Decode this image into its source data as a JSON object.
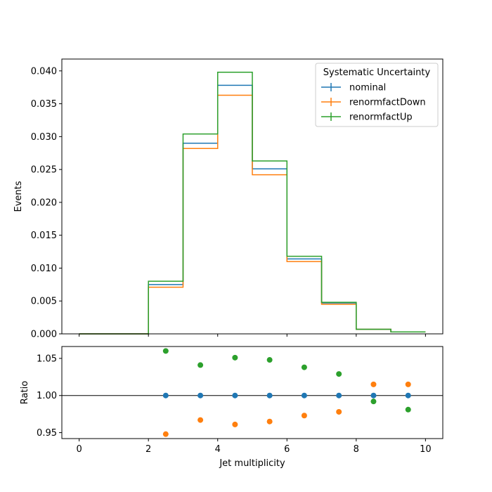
{
  "chart_data": [
    {
      "type": "line",
      "subtype": "step-histogram",
      "title": "",
      "xlabel": "",
      "ylabel": "Events",
      "xlim": [
        -0.5,
        10.5
      ],
      "ylim": [
        0.0,
        0.0418
      ],
      "xticks": [
        0,
        2,
        4,
        6,
        8,
        10
      ],
      "yticks": [
        "0.000",
        "0.005",
        "0.010",
        "0.015",
        "0.020",
        "0.025",
        "0.030",
        "0.035",
        "0.040"
      ],
      "bin_edges": [
        0,
        1,
        2,
        3,
        4,
        5,
        6,
        7,
        8,
        9,
        10
      ],
      "grid": false,
      "legend": {
        "title": "Systematic Uncertainty",
        "position": "top-right"
      },
      "series": [
        {
          "name": "nominal",
          "color": "#1f77b4",
          "values": [
            0.0,
            0.0,
            0.0075,
            0.029,
            0.0378,
            0.0251,
            0.0114,
            0.0047,
            0.0007,
            0.0003
          ]
        },
        {
          "name": "renormfactDown",
          "color": "#ff7f0e",
          "values": [
            0.0,
            0.0,
            0.0071,
            0.0282,
            0.0363,
            0.0242,
            0.011,
            0.0045,
            0.0007,
            0.0003
          ]
        },
        {
          "name": "renormfactUp",
          "color": "#2ca02c",
          "values": [
            0.0,
            0.0,
            0.008,
            0.0304,
            0.0398,
            0.0263,
            0.0118,
            0.0048,
            0.0007,
            0.0003
          ]
        }
      ]
    },
    {
      "type": "scatter",
      "title": "",
      "xlabel": "Jet multiplicity",
      "ylabel": "Ratio",
      "xlim": [
        -0.5,
        10.5
      ],
      "ylim": [
        0.942,
        1.066
      ],
      "xticks": [
        0,
        2,
        4,
        6,
        8,
        10
      ],
      "yticks": [
        "0.95",
        "1.00",
        "1.05"
      ],
      "reference_line": 1.0,
      "grid": false,
      "x": [
        2.5,
        3.5,
        4.5,
        5.5,
        6.5,
        7.5,
        8.5,
        9.5
      ],
      "series": [
        {
          "name": "nominal",
          "color": "#1f77b4",
          "values": [
            1.0,
            1.0,
            1.0,
            1.0,
            1.0,
            1.0,
            1.0,
            1.0
          ]
        },
        {
          "name": "renormfactDown",
          "color": "#ff7f0e",
          "values": [
            0.948,
            0.967,
            0.961,
            0.965,
            0.973,
            0.978,
            1.015,
            1.015
          ]
        },
        {
          "name": "renormfactUp",
          "color": "#2ca02c",
          "values": [
            1.06,
            1.041,
            1.051,
            1.048,
            1.038,
            1.029,
            0.992,
            0.981
          ]
        }
      ]
    }
  ]
}
